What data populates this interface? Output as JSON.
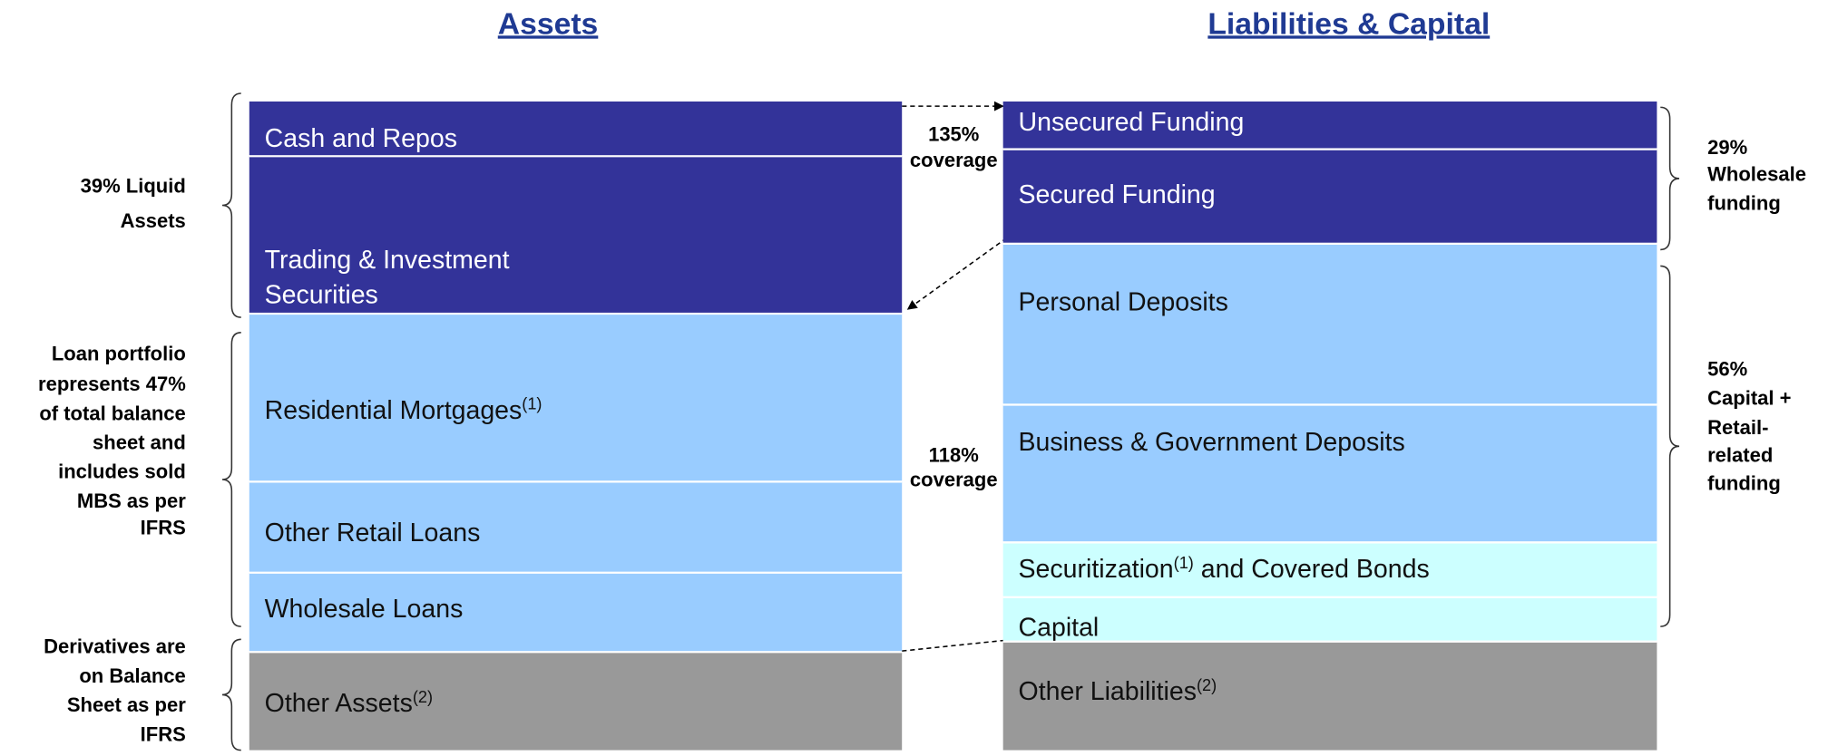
{
  "titles": {
    "assets": "Assets",
    "liabilities": "Liabilities & Capital"
  },
  "assets": [
    {
      "label": "Cash and Repos"
    },
    {
      "lines": [
        "Trading & Investment",
        "Securities"
      ]
    },
    {
      "label": "Residential Mortgages",
      "note": "(1)"
    },
    {
      "label": "Other Retail Loans"
    },
    {
      "label": "Wholesale Loans"
    },
    {
      "label": "Other Assets",
      "note": "(2)"
    }
  ],
  "liabilities": [
    {
      "label": "Unsecured Funding"
    },
    {
      "label": "Secured Funding"
    },
    {
      "label": "Personal Deposits"
    },
    {
      "label": "Business & Government Deposits"
    },
    {
      "label": "Securitization",
      "note": "(1)",
      "label_after": " and Covered Bonds"
    },
    {
      "label": "Capital"
    },
    {
      "label": "Other Liabilities",
      "note": "(2)"
    }
  ],
  "coverage": [
    [
      "135%",
      "coverage"
    ],
    [
      "118%",
      "coverage"
    ]
  ],
  "left_notes": [
    [
      "39% Liquid",
      "Assets"
    ],
    [
      "Loan portfolio",
      "represents 47%",
      "of total balance",
      "sheet and",
      "includes sold",
      "MBS as per",
      "IFRS"
    ],
    [
      "Derivatives are",
      "on Balance",
      "Sheet as per",
      "IFRS"
    ]
  ],
  "right_notes": [
    [
      "29%",
      "Wholesale",
      "funding"
    ],
    [
      "56%",
      "Capital +",
      "Retail-",
      "related",
      "funding"
    ]
  ]
}
